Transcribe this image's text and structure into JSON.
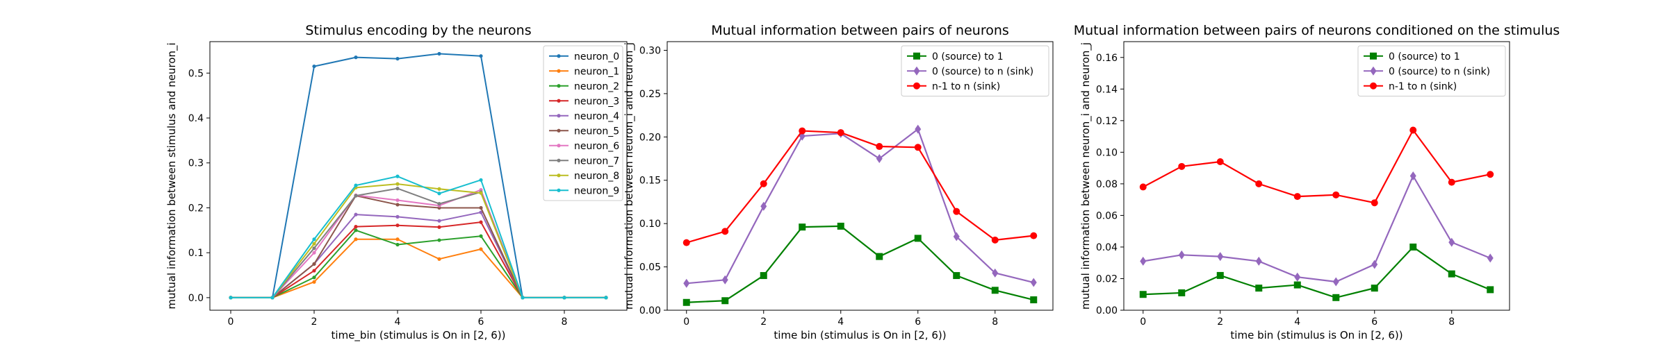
{
  "chart_data": [
    {
      "type": "line",
      "title": "Stimulus encoding by the neurons",
      "xlabel": "time_bin (stimulus is On in [2, 6))",
      "ylabel": "mutual information between stimulus and neuron_i",
      "xlim": [
        -0.5,
        9.5
      ],
      "ylim": [
        -0.028,
        0.57
      ],
      "xticks": [
        0,
        2,
        4,
        6,
        8
      ],
      "yticks": [
        0.0,
        0.1,
        0.2,
        0.3,
        0.4,
        0.5
      ],
      "ytick_decimals": 1,
      "grid": false,
      "legend_position": "top-right",
      "x": [
        0,
        1,
        2,
        3,
        4,
        5,
        6,
        7,
        8,
        9
      ],
      "series": [
        {
          "name": "neuron_0",
          "color": "#1f77b4",
          "marker": "point",
          "values": [
            0,
            0,
            0.515,
            0.535,
            0.532,
            0.543,
            0.538,
            0,
            0,
            0
          ]
        },
        {
          "name": "neuron_1",
          "color": "#ff7f0e",
          "marker": "point",
          "values": [
            0,
            0,
            0.035,
            0.13,
            0.13,
            0.086,
            0.108,
            0,
            0,
            0
          ]
        },
        {
          "name": "neuron_2",
          "color": "#2ca02c",
          "marker": "point",
          "values": [
            0,
            0,
            0.045,
            0.15,
            0.118,
            0.128,
            0.137,
            0,
            0,
            0
          ]
        },
        {
          "name": "neuron_3",
          "color": "#d62728",
          "marker": "point",
          "values": [
            0,
            0,
            0.06,
            0.158,
            0.161,
            0.157,
            0.168,
            0,
            0,
            0
          ]
        },
        {
          "name": "neuron_4",
          "color": "#9467bd",
          "marker": "point",
          "values": [
            0,
            0,
            0.075,
            0.185,
            0.18,
            0.171,
            0.19,
            0,
            0,
            0
          ]
        },
        {
          "name": "neuron_5",
          "color": "#8c564b",
          "marker": "point",
          "values": [
            0,
            0,
            0.075,
            0.227,
            0.207,
            0.2,
            0.2,
            0,
            0,
            0
          ]
        },
        {
          "name": "neuron_6",
          "color": "#e377c2",
          "marker": "point",
          "values": [
            0,
            0,
            0.1,
            0.228,
            0.217,
            0.205,
            0.24,
            0,
            0,
            0
          ]
        },
        {
          "name": "neuron_7",
          "color": "#7f7f7f",
          "marker": "point",
          "values": [
            0,
            0,
            0.11,
            0.227,
            0.243,
            0.209,
            0.235,
            0,
            0,
            0
          ]
        },
        {
          "name": "neuron_8",
          "color": "#bcbd22",
          "marker": "point",
          "values": [
            0,
            0,
            0.12,
            0.245,
            0.253,
            0.242,
            0.233,
            0,
            0,
            0
          ]
        },
        {
          "name": "neuron_9",
          "color": "#17becf",
          "marker": "point",
          "values": [
            0,
            0,
            0.13,
            0.25,
            0.27,
            0.232,
            0.262,
            0,
            0,
            0
          ]
        }
      ]
    },
    {
      "type": "line",
      "title": "Mutual information between pairs of neurons",
      "xlabel": "time bin (stimulus is On in [2, 6))",
      "ylabel": "mutual information between neuron_i and neuron_j",
      "xlim": [
        -0.5,
        9.5
      ],
      "ylim": [
        0.0,
        0.31
      ],
      "xticks": [
        0,
        2,
        4,
        6,
        8
      ],
      "yticks": [
        0.0,
        0.05,
        0.1,
        0.15,
        0.2,
        0.25,
        0.3
      ],
      "ytick_decimals": 2,
      "grid": false,
      "legend_position": "top-right",
      "x": [
        0,
        1,
        2,
        3,
        4,
        5,
        6,
        7,
        8,
        9
      ],
      "series": [
        {
          "name": "0 (source) to 1",
          "color": "#008000",
          "marker": "square",
          "values": [
            0.009,
            0.011,
            0.04,
            0.096,
            0.097,
            0.062,
            0.083,
            0.04,
            0.023,
            0.012
          ]
        },
        {
          "name": "0 (source) to n (sink)",
          "color": "#9467bd",
          "marker": "diamond",
          "values": [
            0.031,
            0.035,
            0.12,
            0.201,
            0.204,
            0.175,
            0.209,
            0.085,
            0.043,
            0.032
          ]
        },
        {
          "name": "n-1 to n (sink)",
          "color": "#ff0000",
          "marker": "circle",
          "values": [
            0.078,
            0.091,
            0.146,
            0.207,
            0.205,
            0.189,
            0.188,
            0.114,
            0.081,
            0.086
          ]
        }
      ]
    },
    {
      "type": "line",
      "title": "Mutual information between pairs of neurons conditioned on the stimulus",
      "xlabel": "time bin (stimulus is On in [2, 6))",
      "ylabel": "mutual information between neuron_i and neuron_j",
      "xlim": [
        -0.5,
        9.5
      ],
      "ylim": [
        0.0,
        0.17
      ],
      "xticks": [
        0,
        2,
        4,
        6,
        8
      ],
      "yticks": [
        0.0,
        0.02,
        0.04,
        0.06,
        0.08,
        0.1,
        0.12,
        0.14,
        0.16
      ],
      "ytick_decimals": 2,
      "grid": false,
      "legend_position": "top-right",
      "x": [
        0,
        1,
        2,
        3,
        4,
        5,
        6,
        7,
        8,
        9
      ],
      "series": [
        {
          "name": "0 (source) to 1",
          "color": "#008000",
          "marker": "square",
          "values": [
            0.01,
            0.011,
            0.022,
            0.014,
            0.016,
            0.008,
            0.014,
            0.04,
            0.023,
            0.013
          ]
        },
        {
          "name": "0 (source) to n (sink)",
          "color": "#9467bd",
          "marker": "diamond",
          "values": [
            0.031,
            0.035,
            0.034,
            0.031,
            0.021,
            0.018,
            0.029,
            0.085,
            0.043,
            0.033
          ]
        },
        {
          "name": "n-1 to n (sink)",
          "color": "#ff0000",
          "marker": "circle",
          "values": [
            0.078,
            0.091,
            0.094,
            0.08,
            0.072,
            0.073,
            0.068,
            0.114,
            0.081,
            0.086
          ]
        }
      ]
    }
  ]
}
